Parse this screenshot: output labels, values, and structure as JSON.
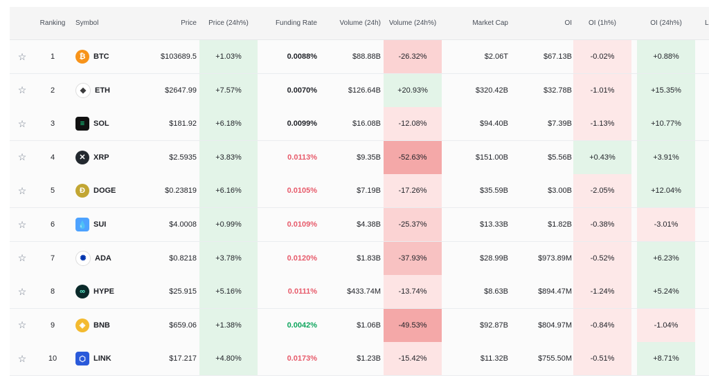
{
  "headers": {
    "ranking": "Ranking",
    "symbol": "Symbol",
    "price": "Price",
    "price24": "Price (24h%)",
    "funding": "Funding Rate",
    "volume": "Volume (24h)",
    "volume24": "Volume (24h%)",
    "mcap": "Market Cap",
    "oi": "OI",
    "oi1h": "OI (1h%)",
    "oi24": "OI (24h%)",
    "more": "Li"
  },
  "colors": {
    "positive_bg": "#e3f4e8",
    "negative_bg": "#fde3e3",
    "funding_red": "#e75a6a",
    "funding_green": "#0ea55d"
  },
  "rows": [
    {
      "star": "☆",
      "rank": "1",
      "symbol": "BTC",
      "icon": "bitcoin-icon",
      "price": "$103689.5",
      "price24": "+1.03%",
      "funding": "0.0088%",
      "volume": "$88.88B",
      "volume24": "-26.32%",
      "mcap": "$2.06T",
      "oi": "$67.13B",
      "oi1h": "-0.02%",
      "oi24": "+0.88%"
    },
    {
      "star": "☆",
      "rank": "2",
      "symbol": "ETH",
      "icon": "ethereum-icon",
      "price": "$2647.99",
      "price24": "+7.57%",
      "funding": "0.0070%",
      "volume": "$126.64B",
      "volume24": "+20.93%",
      "mcap": "$320.42B",
      "oi": "$32.78B",
      "oi1h": "-1.01%",
      "oi24": "+15.35%"
    },
    {
      "star": "☆",
      "rank": "3",
      "symbol": "SOL",
      "icon": "solana-icon",
      "price": "$181.92",
      "price24": "+6.18%",
      "funding": "0.0099%",
      "volume": "$16.08B",
      "volume24": "-12.08%",
      "mcap": "$94.40B",
      "oi": "$7.39B",
      "oi1h": "-1.13%",
      "oi24": "+10.77%"
    },
    {
      "star": "☆",
      "rank": "4",
      "symbol": "XRP",
      "icon": "xrp-icon",
      "price": "$2.5935",
      "price24": "+3.83%",
      "funding": "0.0113%",
      "volume": "$9.35B",
      "volume24": "-52.63%",
      "mcap": "$151.00B",
      "oi": "$5.56B",
      "oi1h": "+0.43%",
      "oi24": "+3.91%"
    },
    {
      "star": "☆",
      "rank": "5",
      "symbol": "DOGE",
      "icon": "dogecoin-icon",
      "price": "$0.23819",
      "price24": "+6.16%",
      "funding": "0.0105%",
      "volume": "$7.19B",
      "volume24": "-17.26%",
      "mcap": "$35.59B",
      "oi": "$3.00B",
      "oi1h": "-2.05%",
      "oi24": "+12.04%"
    },
    {
      "star": "☆",
      "rank": "6",
      "symbol": "SUI",
      "icon": "sui-icon",
      "price": "$4.0008",
      "price24": "+0.99%",
      "funding": "0.0109%",
      "volume": "$4.38B",
      "volume24": "-25.37%",
      "mcap": "$13.33B",
      "oi": "$1.82B",
      "oi1h": "-0.38%",
      "oi24": "-3.01%"
    },
    {
      "star": "☆",
      "rank": "7",
      "symbol": "ADA",
      "icon": "cardano-icon",
      "price": "$0.8218",
      "price24": "+3.78%",
      "funding": "0.0120%",
      "volume": "$1.83B",
      "volume24": "-37.93%",
      "mcap": "$28.99B",
      "oi": "$973.89M",
      "oi1h": "-0.52%",
      "oi24": "+6.23%"
    },
    {
      "star": "☆",
      "rank": "8",
      "symbol": "HYPE",
      "icon": "hyperliquid-icon",
      "price": "$25.915",
      "price24": "+5.16%",
      "funding": "0.0111%",
      "volume": "$433.74M",
      "volume24": "-13.74%",
      "mcap": "$8.63B",
      "oi": "$894.47M",
      "oi1h": "-1.24%",
      "oi24": "+5.24%"
    },
    {
      "star": "☆",
      "rank": "9",
      "symbol": "BNB",
      "icon": "bnb-icon",
      "price": "$659.06",
      "price24": "+1.38%",
      "funding": "0.0042%",
      "volume": "$1.06B",
      "volume24": "-49.53%",
      "mcap": "$92.87B",
      "oi": "$804.97M",
      "oi1h": "-0.84%",
      "oi24": "-1.04%"
    },
    {
      "star": "☆",
      "rank": "10",
      "symbol": "LINK",
      "icon": "chainlink-icon",
      "price": "$17.217",
      "price24": "+4.80%",
      "funding": "0.0173%",
      "volume": "$1.23B",
      "volume24": "-15.42%",
      "mcap": "$11.32B",
      "oi": "$755.50M",
      "oi1h": "-0.51%",
      "oi24": "+8.71%"
    }
  ]
}
